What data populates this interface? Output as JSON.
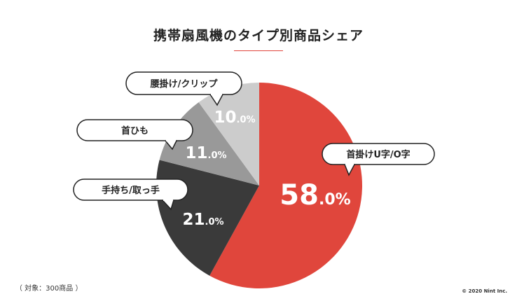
{
  "title": "携帯扇風機のタイプ別商品シェア",
  "note": "（ 対象：300商品 ）",
  "copyright": "© 2020 Nint Inc.",
  "colors": {
    "accent": "#e0463c",
    "dark": "#3a3a3a",
    "mid": "#999999",
    "light": "#cccccc"
  },
  "chart_data": {
    "type": "pie",
    "title": "携帯扇風機のタイプ別商品シェア",
    "unit": "%",
    "slices": [
      {
        "label": "首掛けU字/O字",
        "value": 58.0,
        "color": "#e0463c"
      },
      {
        "label": "手持ち/取っ手",
        "value": 21.0,
        "color": "#3a3a3a"
      },
      {
        "label": "首ひも",
        "value": 11.0,
        "color": "#999999"
      },
      {
        "label": "腰掛け/クリップ",
        "value": 10.0,
        "color": "#cccccc"
      }
    ]
  }
}
